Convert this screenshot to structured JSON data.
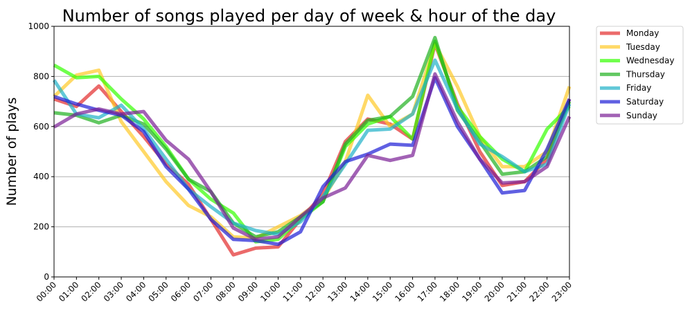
{
  "chart_data": {
    "type": "line",
    "title": "Number of songs played per day of week & hour of the day",
    "xlabel": "",
    "ylabel": "Number of plays",
    "categories": [
      "00:00",
      "01:00",
      "02:00",
      "03:00",
      "04:00",
      "05:00",
      "06:00",
      "07:00",
      "08:00",
      "09:00",
      "10:00",
      "11:00",
      "12:00",
      "13:00",
      "14:00",
      "15:00",
      "16:00",
      "17:00",
      "18:00",
      "19:00",
      "20:00",
      "21:00",
      "22:00",
      "23:00"
    ],
    "ylim": [
      0,
      1000
    ],
    "yticks": [
      0,
      200,
      400,
      600,
      800,
      1000
    ],
    "grid": "horizontal",
    "legend_position": "outside-right",
    "series": [
      {
        "name": "Monday",
        "color": "#e32b2b",
        "values": [
          710,
          680,
          762,
          660,
          560,
          450,
          370,
          230,
          88,
          115,
          120,
          230,
          330,
          540,
          630,
          610,
          550,
          930,
          690,
          500,
          365,
          380,
          470,
          710
        ]
      },
      {
        "name": "Tuesday",
        "color": "#ffc926",
        "values": [
          720,
          805,
          825,
          620,
          500,
          380,
          285,
          240,
          160,
          155,
          200,
          245,
          310,
          460,
          725,
          600,
          650,
          930,
          760,
          560,
          440,
          440,
          500,
          760
        ]
      },
      {
        "name": "Wednesday",
        "color": "#33ff00",
        "values": [
          845,
          795,
          800,
          710,
          630,
          520,
          390,
          310,
          255,
          140,
          150,
          230,
          300,
          520,
          610,
          640,
          550,
          940,
          680,
          560,
          470,
          420,
          590,
          680
        ]
      },
      {
        "name": "Thursday",
        "color": "#1fb01f",
        "values": [
          655,
          645,
          615,
          645,
          610,
          510,
          390,
          340,
          215,
          160,
          180,
          240,
          300,
          530,
          625,
          640,
          720,
          955,
          665,
          540,
          410,
          420,
          480,
          700
        ]
      },
      {
        "name": "Friday",
        "color": "#1fb0c8",
        "values": [
          785,
          650,
          635,
          685,
          590,
          470,
          350,
          280,
          215,
          185,
          170,
          220,
          320,
          450,
          585,
          590,
          650,
          865,
          670,
          530,
          480,
          420,
          450,
          690
        ]
      },
      {
        "name": "Saturday",
        "color": "#1c1cd6",
        "values": [
          720,
          690,
          665,
          645,
          580,
          440,
          350,
          230,
          150,
          145,
          130,
          180,
          360,
          460,
          490,
          530,
          525,
          795,
          600,
          470,
          335,
          345,
          510,
          710
        ]
      },
      {
        "name": "Sunday",
        "color": "#7a1f96",
        "values": [
          598,
          650,
          670,
          650,
          660,
          545,
          470,
          340,
          195,
          150,
          160,
          240,
          315,
          355,
          485,
          465,
          485,
          810,
          620,
          470,
          375,
          380,
          440,
          640
        ]
      }
    ]
  }
}
